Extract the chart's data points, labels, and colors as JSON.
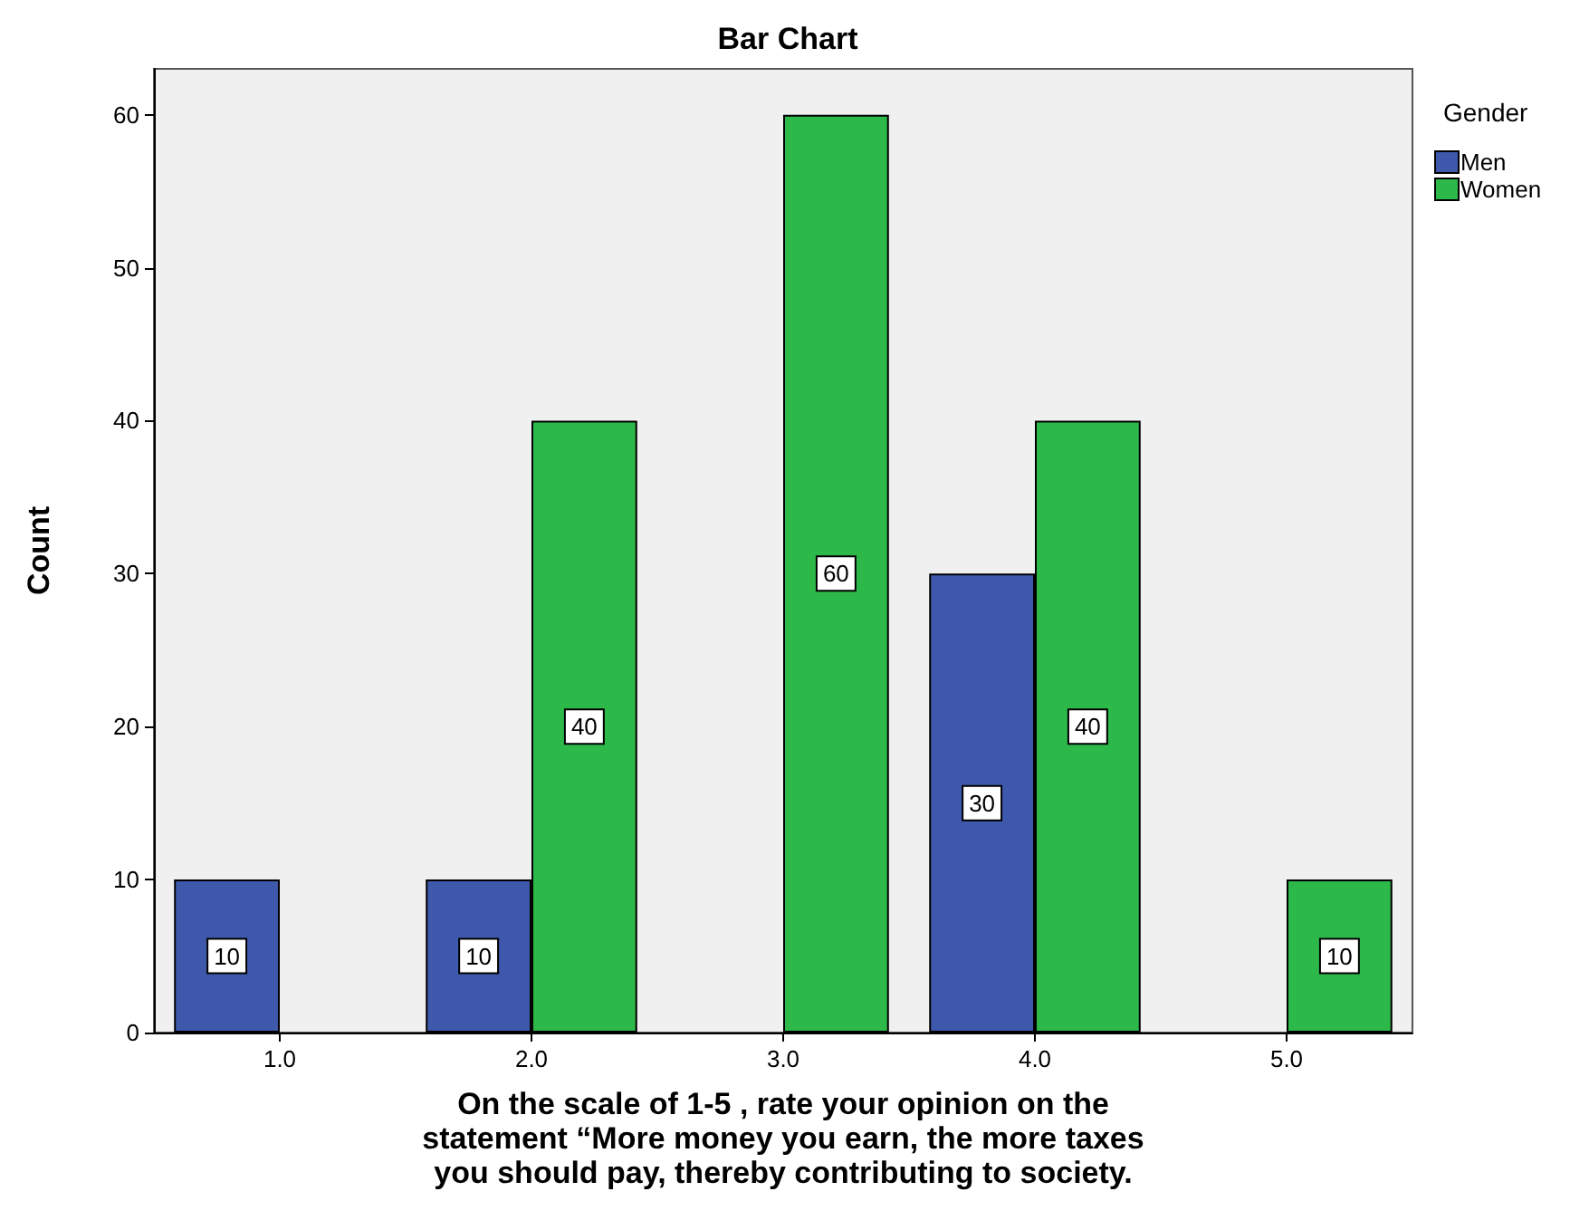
{
  "chart_data": {
    "type": "bar",
    "title": "Bar Chart",
    "xlabel": "On the scale of 1-5 , rate your opinion on the\nstatement “More money you earn, the more taxes\nyou should pay, thereby contributing to society.",
    "ylabel": "Count",
    "legend_title": "Gender",
    "categories": [
      "1.0",
      "2.0",
      "3.0",
      "4.0",
      "5.0"
    ],
    "series": [
      {
        "name": "Men",
        "color": "#3e58ac",
        "values": [
          10,
          10,
          null,
          30,
          null
        ]
      },
      {
        "name": "Women",
        "color": "#2db84a",
        "values": [
          null,
          40,
          60,
          40,
          10
        ]
      }
    ],
    "ylim": [
      0,
      63
    ],
    "yticks": [
      0,
      10,
      20,
      30,
      40,
      50,
      60
    ],
    "grid": false,
    "legend": "top right",
    "data_labels": true
  }
}
